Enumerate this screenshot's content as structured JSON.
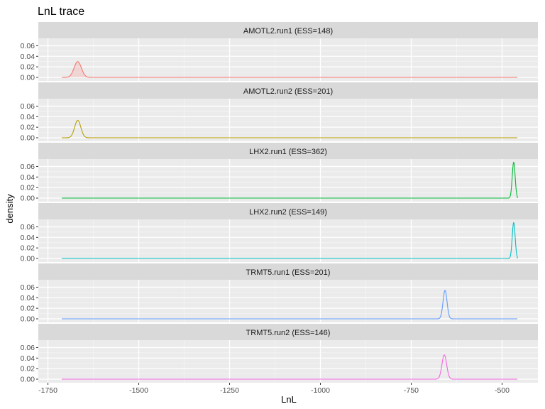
{
  "chart_data": {
    "type": "area",
    "title": "LnL trace",
    "xlabel": "LnL",
    "ylabel": "density",
    "xlim": [
      -1712,
      -458
    ],
    "x_ticks": [
      -1750,
      -1500,
      -1250,
      -1000,
      -750,
      -500
    ],
    "x_tick_labels": [
      "-1750",
      "-1500",
      "-1250",
      "-1000",
      "-750",
      "-500"
    ],
    "ylim": [
      0,
      0.07
    ],
    "y_ticks": [
      0,
      0.02,
      0.04,
      0.06
    ],
    "y_tick_labels": [
      "0.00",
      "0.02",
      "0.04",
      "0.06"
    ],
    "grid": true,
    "legend": "none",
    "facets": [
      {
        "strip": "AMOTL2.run1 (ESS=148)",
        "color": "#F8766D",
        "fill": true,
        "support": [
          -1712,
          -458
        ],
        "peak_x": -1668,
        "peak_density": 0.03,
        "sd": 10
      },
      {
        "strip": "AMOTL2.run2 (ESS=201)",
        "color": "#B79F00",
        "fill": false,
        "support": [
          -1712,
          -458
        ],
        "peak_x": -1668,
        "peak_density": 0.033,
        "sd": 8.5
      },
      {
        "strip": "LHX2.run1 (ESS=362)",
        "color": "#00BA38",
        "fill": false,
        "support": [
          -1712,
          -458
        ],
        "peak_x": -468,
        "peak_density": 0.068,
        "sd": 4
      },
      {
        "strip": "LHX2.run2 (ESS=149)",
        "color": "#00BFC4",
        "fill": false,
        "support": [
          -1712,
          -458
        ],
        "peak_x": -468,
        "peak_density": 0.068,
        "sd": 4
      },
      {
        "strip": "TRMT5.run1 (ESS=201)",
        "color": "#619CFF",
        "fill": false,
        "support": [
          -1712,
          -458
        ],
        "peak_x": -657,
        "peak_density": 0.054,
        "sd": 5.5
      },
      {
        "strip": "TRMT5.run2 (ESS=146)",
        "color": "#F564E3",
        "fill": false,
        "support": [
          -1712,
          -458
        ],
        "peak_x": -659,
        "peak_density": 0.046,
        "sd": 6.5
      }
    ]
  }
}
